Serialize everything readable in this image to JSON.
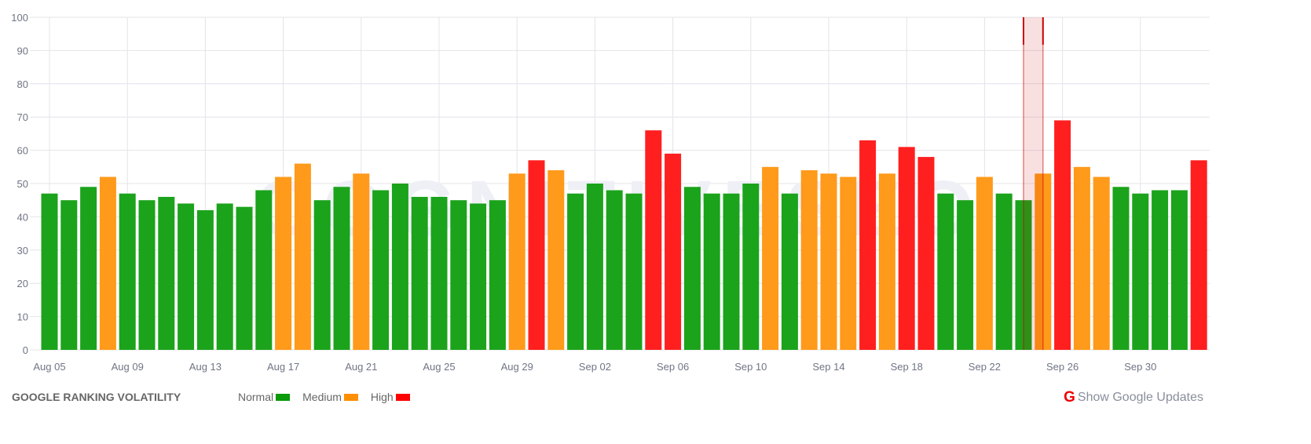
{
  "chart_data": {
    "type": "bar",
    "title": "GOOGLE RANKING VOLATILITY",
    "ylim": [
      0,
      100
    ],
    "yticks": [
      0,
      10,
      20,
      30,
      40,
      50,
      60,
      70,
      80,
      90,
      100
    ],
    "grid": true,
    "categories": [
      "Aug 05",
      "Aug 06",
      "Aug 07",
      "Aug 08",
      "Aug 09",
      "Aug 10",
      "Aug 11",
      "Aug 12",
      "Aug 13",
      "Aug 14",
      "Aug 15",
      "Aug 16",
      "Aug 17",
      "Aug 18",
      "Aug 19",
      "Aug 20",
      "Aug 21",
      "Aug 22",
      "Aug 23",
      "Aug 24",
      "Aug 25",
      "Aug 26",
      "Aug 27",
      "Aug 28",
      "Aug 29",
      "Aug 30",
      "Aug 31",
      "Sep 01",
      "Sep 02",
      "Sep 03",
      "Sep 04",
      "Sep 05",
      "Sep 06",
      "Sep 07",
      "Sep 08",
      "Sep 09",
      "Sep 10",
      "Sep 11",
      "Sep 12",
      "Sep 13",
      "Sep 14",
      "Sep 15",
      "Sep 16",
      "Sep 17",
      "Sep 18",
      "Sep 19",
      "Sep 20",
      "Sep 21",
      "Sep 22",
      "Sep 23",
      "Sep 24",
      "Sep 25",
      "Sep 26",
      "Sep 27",
      "Sep 28",
      "Sep 29",
      "Sep 30",
      "Oct 01",
      "Oct 02",
      "Oct 03"
    ],
    "values": [
      47,
      45,
      49,
      52,
      47,
      45,
      46,
      44,
      42,
      44,
      43,
      48,
      52,
      56,
      45,
      49,
      53,
      48,
      50,
      46,
      46,
      45,
      44,
      45,
      53,
      57,
      54,
      47,
      50,
      48,
      47,
      66,
      59,
      49,
      47,
      47,
      50,
      55,
      47,
      54,
      53,
      52,
      63,
      53,
      61,
      58,
      47,
      45,
      52,
      47,
      45,
      53,
      69,
      55,
      52,
      49,
      47,
      48,
      48,
      57
    ],
    "levels": [
      "normal",
      "normal",
      "normal",
      "medium",
      "normal",
      "normal",
      "normal",
      "normal",
      "normal",
      "normal",
      "normal",
      "normal",
      "medium",
      "medium",
      "normal",
      "normal",
      "medium",
      "normal",
      "normal",
      "normal",
      "normal",
      "normal",
      "normal",
      "normal",
      "medium",
      "high",
      "medium",
      "normal",
      "normal",
      "normal",
      "normal",
      "high",
      "high",
      "normal",
      "normal",
      "normal",
      "normal",
      "medium",
      "normal",
      "medium",
      "medium",
      "medium",
      "high",
      "medium",
      "high",
      "high",
      "normal",
      "normal",
      "medium",
      "normal",
      "normal",
      "medium",
      "high",
      "medium",
      "medium",
      "normal",
      "normal",
      "normal",
      "normal",
      "high"
    ],
    "xtick_labels": [
      "Aug 05",
      "Aug 09",
      "Aug 13",
      "Aug 17",
      "Aug 21",
      "Aug 25",
      "Aug 29",
      "Sep 02",
      "Sep 06",
      "Sep 10",
      "Sep 14",
      "Sep 18",
      "Sep 22",
      "Sep 26",
      "Sep 30"
    ],
    "highlight_band": {
      "from": "Sep 24",
      "to": "Sep 25",
      "color": "#cc0000"
    },
    "colors": {
      "normal": "#1ba31b",
      "medium": "#ff9a1a",
      "high": "#ff1f1f"
    },
    "legend": [
      {
        "label": "Normal",
        "level": "normal"
      },
      {
        "label": "Medium",
        "level": "medium"
      },
      {
        "label": "High",
        "level": "high"
      }
    ],
    "legend_placement": "bottom"
  },
  "watermark": "COGNITIVESEO",
  "footer": {
    "google_updates_label": "Show Google Updates",
    "google_icon": "google-g-icon"
  }
}
